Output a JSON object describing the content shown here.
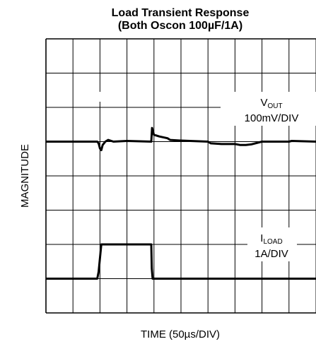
{
  "chart_data": {
    "type": "line",
    "title_line1": "Load Transient Response",
    "title_line2": "(Both Oscon 100µF/1A)",
    "xlabel": "TIME (50µs/DIV)",
    "ylabel": "MAGNITUDE",
    "grid": true,
    "x_divisions": 10,
    "y_divisions": 8,
    "xlim": [
      0,
      10
    ],
    "ylim": [
      0,
      8
    ],
    "annotations": [
      {
        "main": "V",
        "sub": "OUT",
        "scale": "100mV/DIV"
      },
      {
        "main": "I",
        "sub": "LOAD",
        "scale": "1A/DIV"
      }
    ],
    "series": [
      {
        "key": "vout",
        "x": [
          0,
          1.9,
          1.95,
          2.0,
          2.05,
          2.1,
          2.2,
          2.3,
          2.5,
          3.0,
          3.9,
          3.93,
          3.96,
          4.0,
          4.2,
          4.5,
          4.6,
          5.0,
          6.0,
          6.1,
          6.5,
          7.0,
          7.2,
          7.4,
          7.6,
          8.0,
          8.5,
          9.0,
          9.1,
          10.0
        ],
        "y": [
          5.0,
          5.0,
          4.95,
          4.8,
          4.75,
          4.9,
          5.0,
          5.05,
          5.0,
          5.02,
          5.0,
          5.4,
          5.3,
          5.2,
          5.15,
          5.1,
          5.05,
          5.03,
          5.0,
          4.95,
          4.93,
          4.93,
          4.9,
          4.9,
          4.92,
          5.0,
          5.0,
          5.0,
          5.02,
          5.0
        ]
      },
      {
        "key": "iload",
        "x": [
          0,
          1.9,
          1.95,
          2.05,
          2.1,
          3.9,
          3.92,
          3.95,
          10.0
        ],
        "y": [
          1.0,
          1.0,
          1.2,
          2.0,
          2.0,
          2.0,
          1.3,
          1.0,
          1.0
        ]
      }
    ]
  }
}
